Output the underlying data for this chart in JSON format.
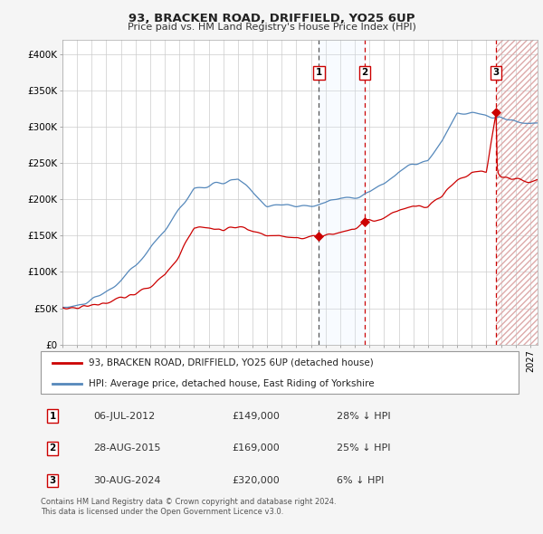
{
  "title": "93, BRACKEN ROAD, DRIFFIELD, YO25 6UP",
  "subtitle": "Price paid vs. HM Land Registry's House Price Index (HPI)",
  "ylabel_ticks": [
    "£0",
    "£50K",
    "£100K",
    "£150K",
    "£200K",
    "£250K",
    "£300K",
    "£350K",
    "£400K"
  ],
  "ylim": [
    0,
    420000
  ],
  "xlim_start": 1995.0,
  "xlim_end": 2027.5,
  "background_color": "#f5f5f5",
  "grid_color": "#cccccc",
  "plot_bg_color": "#ffffff",
  "sale_year_floats": [
    2012.54,
    2015.66,
    2024.66
  ],
  "sale_prices": [
    149000,
    169000,
    320000
  ],
  "sale_labels": [
    "1",
    "2",
    "3"
  ],
  "transaction_table": [
    {
      "label": "1",
      "date": "06-JUL-2012",
      "price": "£149,000",
      "hpi": "28% ↓ HPI"
    },
    {
      "label": "2",
      "date": "28-AUG-2015",
      "price": "£169,000",
      "hpi": "25% ↓ HPI"
    },
    {
      "label": "3",
      "date": "30-AUG-2024",
      "price": "£320,000",
      "hpi": "6% ↓ HPI"
    }
  ],
  "legend_red_label": "93, BRACKEN ROAD, DRIFFIELD, YO25 6UP (detached house)",
  "legend_blue_label": "HPI: Average price, detached house, East Riding of Yorkshire",
  "footer_line1": "Contains HM Land Registry data © Crown copyright and database right 2024.",
  "footer_line2": "This data is licensed under the Open Government Licence v3.0.",
  "red_color": "#cc0000",
  "blue_color": "#5588bb",
  "shade_color": "#ddeeff",
  "hatch_edge_color": "#ddaaaa"
}
